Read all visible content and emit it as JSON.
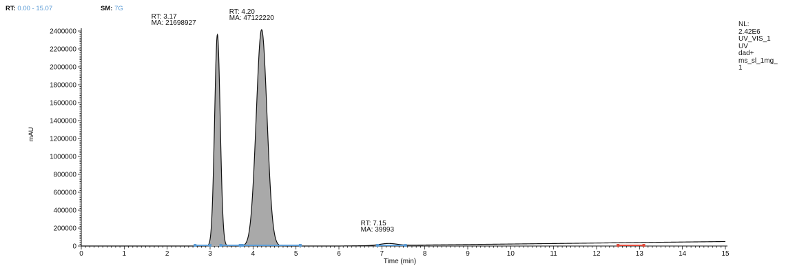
{
  "header": {
    "rt_label": "RT:",
    "rt_range": "0.00 - 15.07",
    "sm_label": "SM:",
    "sm_value": "7G",
    "value_color": "#5a9bd5"
  },
  "normalization": {
    "lines": [
      "NL:",
      "2.42E6",
      "UV_VIS_1",
      "UV",
      "dad+",
      "ms_sl_1mg_",
      "1"
    ]
  },
  "chart_data": {
    "type": "line",
    "title": "",
    "xlabel": "Time (min)",
    "ylabel": "mAU",
    "xlim": [
      0,
      15
    ],
    "ylim": [
      0,
      2500000
    ],
    "x_ticks": [
      "0",
      "1",
      "2",
      "3",
      "4",
      "5",
      "6",
      "7",
      "8",
      "9",
      "10",
      "11",
      "12",
      "13",
      "14",
      "15"
    ],
    "y_ticks": [
      "0",
      "200000",
      "400000",
      "600000",
      "800000",
      "1000000",
      "1200000",
      "1400000",
      "1600000",
      "1800000",
      "2000000",
      "2200000",
      "2400000"
    ],
    "peaks": [
      {
        "rt": 3.17,
        "height": 2360000,
        "width": 0.065,
        "label_rt": "RT: 3.17",
        "label_ma": "MA: 21698927",
        "filled": true
      },
      {
        "rt": 4.2,
        "height": 2415000,
        "width": 0.125,
        "label_rt": "RT: 4.20",
        "label_ma": "MA: 47122220",
        "filled": true
      },
      {
        "rt": 7.15,
        "height": 22000,
        "width": 0.2,
        "label_rt": "RT: 7.15",
        "label_ma": "MA: 39993",
        "filled": false
      }
    ],
    "baseline": {
      "start_time": 6.0,
      "end_value": 50000
    },
    "integration_marks": [
      {
        "start": 2.65,
        "end": 3.0,
        "color": "#5a9bd5"
      },
      {
        "start": 3.25,
        "end": 3.7,
        "color": "#5a9bd5"
      },
      {
        "start": 3.75,
        "end": 5.1,
        "color": "#5a9bd5"
      },
      {
        "start": 6.9,
        "end": 7.55,
        "color": "#5a9bd5"
      },
      {
        "start": 12.5,
        "end": 13.1,
        "color": "#e04a3a"
      }
    ],
    "grid": false,
    "line_color": "#111111",
    "fill_color": "#a9a9a9"
  }
}
